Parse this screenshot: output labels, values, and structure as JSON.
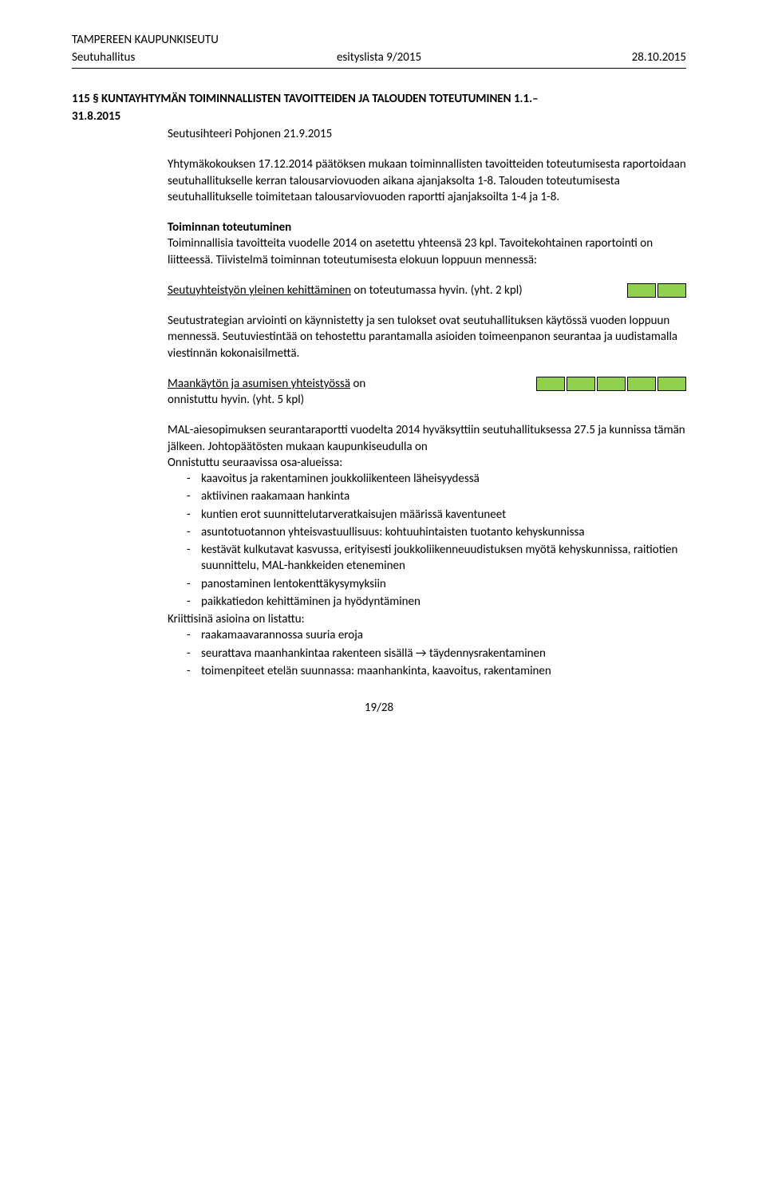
{
  "header": {
    "org": "TAMPEREEN KAUPUNKISEUTU",
    "body": "Seutuhallitus",
    "doc_ref": "esityslista 9/2015",
    "date": "28.10.2015"
  },
  "title": {
    "line1": "115 § KUNTAYHTYMÄN TOIMINNALLISTEN TAVOITTEIDEN JA TALOUDEN TOTEUTUMINEN 1.1.–",
    "line2": "31.8.2015"
  },
  "author": "Seutusihteeri Pohjonen 21.9.2015",
  "intro": "Yhtymäkokouksen 17.12.2014 päätöksen mukaan toiminnallisten tavoitteiden toteutumisesta raportoidaan seutuhallitukselle kerran talousarviovuoden aikana ajanjaksolta 1-8. Talouden toteutumisesta seutuhallitukselle toimitetaan talousarviovuoden raportti ajanjaksoilta 1-4 ja 1-8.",
  "section_toiminta": {
    "heading": "Toiminnan toteutuminen",
    "text": "Toiminnallisia tavoitteita vuodelle 2014 on asetettu yhteensä 23 kpl. Tavoitekohtainen raportointi on liitteessä. Tiivistelmä toiminnan toteutumisesta elokuun loppuun mennessä:"
  },
  "status1": {
    "underlined": "Seutuyhteistyön yleinen kehittäminen",
    "after": " on toteutumassa hyvin. (yht. 2 kpl)",
    "boxes": 2,
    "box_color": "#92d050"
  },
  "strategy_para": "Seutustrategian arviointi on käynnistetty ja sen tulokset ovat seutuhallituksen käytössä vuoden loppuun mennessä. Seutuviestintää on tehostettu parantamalla asioiden toimeenpanon seurantaa ja uudistamalla viestinnän kokonaisilmettä.",
  "status2": {
    "underlined": "Maankäytön ja asumisen yhteistyössä",
    "after": "on",
    "line2": "onnistuttu hyvin. (yht. 5 kpl)",
    "boxes": 5,
    "box_color": "#92d050"
  },
  "mal_intro": "MAL-aiesopimuksen seurantaraportti vuodelta 2014 hyväksyttiin seutuhallituksessa 27.5 ja kunnissa tämän jälkeen. Johtopäätösten mukaan kaupunkiseudulla on",
  "onnistuttu_label": "Onnistuttu seuraavissa osa-alueissa:",
  "onnistuttu_items": [
    "kaavoitus ja rakentaminen joukkoliikenteen läheisyydessä",
    "aktiivinen raakamaan hankinta",
    "kuntien erot suunnittelutarveratkaisujen määrissä kaventuneet",
    "asuntotuotannon yhteisvastuullisuus: kohtuuhintaisten tuotanto kehyskunnissa",
    "kestävät kulkutavat kasvussa, erityisesti joukkoliikenneuudistuksen myötä kehyskunnissa, raitiotien suunnittelu, MAL-hankkeiden eteneminen",
    "panostaminen lentokenttäkysymyksiin",
    "paikkatiedon kehittäminen ja hyödyntäminen"
  ],
  "kriittisina_label": "Kriittisinä asioina on listattu:",
  "kriittisina_items": [
    "raakamaavarannossa suuria eroja",
    "seurattava maanhankintaa rakenteen sisällä → täydennysrakentaminen",
    "toimenpiteet etelän suunnassa: maanhankinta, kaavoitus, rakentaminen"
  ],
  "footer": "19/28"
}
